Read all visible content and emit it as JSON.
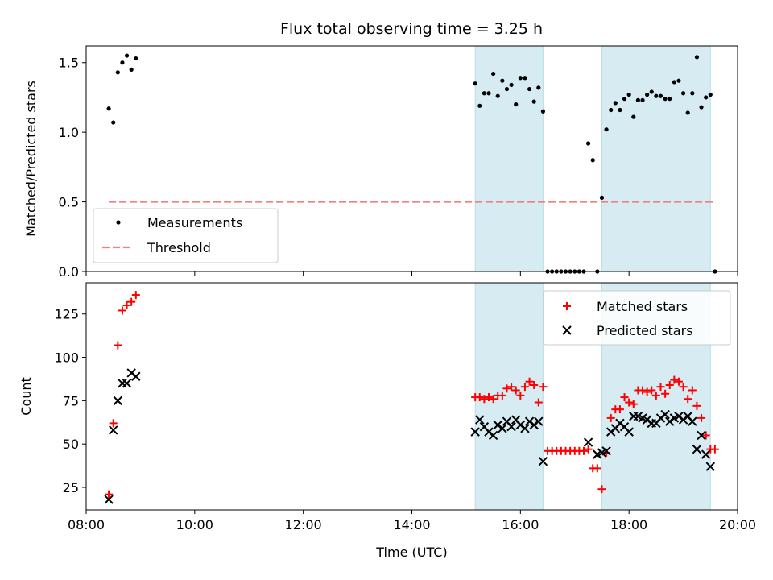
{
  "chart_data": [
    {
      "type": "scatter",
      "title": "Flux total observing time = 3.25 h",
      "xlabel": "",
      "ylabel": "Matched/Predicted stars",
      "xlim": [
        "08:00",
        "20:00"
      ],
      "ylim": [
        0,
        1.62
      ],
      "yticks": [
        "0.0",
        "0.5",
        "1.0",
        "1.5"
      ],
      "legend_position": "lower-left",
      "colors": {
        "measurements": "#000000",
        "threshold": "#f08080",
        "highlight": "#add8e6"
      },
      "highlight_spans": [
        [
          "15:10",
          "16:25"
        ],
        [
          "17:30",
          "19:30"
        ]
      ],
      "threshold": {
        "name": "Threshold",
        "y": 0.5,
        "x_start": "08:25",
        "x_end": "19:35"
      },
      "series": [
        {
          "name": "Measurements",
          "points": [
            [
              "08:25",
              1.17
            ],
            [
              "08:30",
              1.07
            ],
            [
              "08:35",
              1.43
            ],
            [
              "08:40",
              1.5
            ],
            [
              "08:45",
              1.55
            ],
            [
              "08:50",
              1.45
            ],
            [
              "08:55",
              1.53
            ],
            [
              "15:10",
              1.35
            ],
            [
              "15:15",
              1.19
            ],
            [
              "15:20",
              1.28
            ],
            [
              "15:25",
              1.28
            ],
            [
              "15:30",
              1.42
            ],
            [
              "15:35",
              1.26
            ],
            [
              "15:40",
              1.37
            ],
            [
              "15:45",
              1.31
            ],
            [
              "15:50",
              1.34
            ],
            [
              "15:55",
              1.2
            ],
            [
              "16:00",
              1.39
            ],
            [
              "16:05",
              1.39
            ],
            [
              "16:10",
              1.31
            ],
            [
              "16:15",
              1.22
            ],
            [
              "16:20",
              1.32
            ],
            [
              "16:25",
              1.15
            ],
            [
              "16:30",
              0.0
            ],
            [
              "16:35",
              0.0
            ],
            [
              "16:40",
              0.0
            ],
            [
              "16:45",
              0.0
            ],
            [
              "16:50",
              0.0
            ],
            [
              "16:55",
              0.0
            ],
            [
              "17:00",
              0.0
            ],
            [
              "17:05",
              0.0
            ],
            [
              "17:10",
              0.0
            ],
            [
              "17:15",
              0.92
            ],
            [
              "17:20",
              0.8
            ],
            [
              "17:25",
              0.0
            ],
            [
              "17:30",
              0.53
            ],
            [
              "17:35",
              1.02
            ],
            [
              "17:40",
              1.16
            ],
            [
              "17:45",
              1.21
            ],
            [
              "17:50",
              1.16
            ],
            [
              "17:55",
              1.24
            ],
            [
              "18:00",
              1.27
            ],
            [
              "18:05",
              1.11
            ],
            [
              "18:10",
              1.23
            ],
            [
              "18:15",
              1.23
            ],
            [
              "18:20",
              1.27
            ],
            [
              "18:25",
              1.29
            ],
            [
              "18:30",
              1.26
            ],
            [
              "18:35",
              1.26
            ],
            [
              "18:40",
              1.24
            ],
            [
              "18:45",
              1.24
            ],
            [
              "18:50",
              1.36
            ],
            [
              "18:55",
              1.37
            ],
            [
              "19:00",
              1.28
            ],
            [
              "19:05",
              1.14
            ],
            [
              "19:10",
              1.28
            ],
            [
              "19:15",
              1.54
            ],
            [
              "19:20",
              1.18
            ],
            [
              "19:25",
              1.25
            ],
            [
              "19:30",
              1.27
            ],
            [
              "19:35",
              0.0
            ]
          ]
        }
      ]
    },
    {
      "type": "scatter",
      "title": "",
      "xlabel": "Time (UTC)",
      "ylabel": "Count",
      "xlim": [
        "08:00",
        "20:00"
      ],
      "ylim": [
        12,
        143
      ],
      "xticks": [
        "08:00",
        "10:00",
        "12:00",
        "14:00",
        "16:00",
        "18:00",
        "20:00"
      ],
      "yticks": [
        "25",
        "50",
        "75",
        "100",
        "125"
      ],
      "legend_position": "upper-right",
      "colors": {
        "matched": "#ff0000",
        "predicted": "#000000",
        "highlight": "#add8e6"
      },
      "highlight_spans": [
        [
          "15:10",
          "16:25"
        ],
        [
          "17:30",
          "19:30"
        ]
      ],
      "series": [
        {
          "name": "Matched stars",
          "marker": "plus",
          "points": [
            [
              "08:25",
              21
            ],
            [
              "08:30",
              62
            ],
            [
              "08:35",
              107
            ],
            [
              "08:40",
              127
            ],
            [
              "08:45",
              130
            ],
            [
              "08:50",
              132
            ],
            [
              "08:55",
              136
            ],
            [
              "15:10",
              77
            ],
            [
              "15:15",
              77
            ],
            [
              "15:20",
              76
            ],
            [
              "15:25",
              77
            ],
            [
              "15:30",
              76
            ],
            [
              "15:35",
              78
            ],
            [
              "15:40",
              78
            ],
            [
              "15:45",
              82
            ],
            [
              "15:50",
              83
            ],
            [
              "15:55",
              81
            ],
            [
              "16:00",
              78
            ],
            [
              "16:05",
              83
            ],
            [
              "16:10",
              86
            ],
            [
              "16:15",
              84
            ],
            [
              "16:20",
              74
            ],
            [
              "16:25",
              83
            ],
            [
              "16:30",
              46
            ],
            [
              "16:35",
              46
            ],
            [
              "16:40",
              46
            ],
            [
              "16:45",
              46
            ],
            [
              "16:50",
              46
            ],
            [
              "16:55",
              46
            ],
            [
              "17:00",
              46
            ],
            [
              "17:05",
              46
            ],
            [
              "17:10",
              46
            ],
            [
              "17:15",
              47
            ],
            [
              "17:20",
              36
            ],
            [
              "17:25",
              36
            ],
            [
              "17:30",
              24
            ],
            [
              "17:35",
              45
            ],
            [
              "17:40",
              65
            ],
            [
              "17:45",
              70
            ],
            [
              "17:50",
              70
            ],
            [
              "17:55",
              77
            ],
            [
              "18:00",
              74
            ],
            [
              "18:05",
              73
            ],
            [
              "18:10",
              81
            ],
            [
              "18:15",
              81
            ],
            [
              "18:20",
              80
            ],
            [
              "18:25",
              81
            ],
            [
              "18:30",
              78
            ],
            [
              "18:35",
              83
            ],
            [
              "18:40",
              79
            ],
            [
              "18:45",
              84
            ],
            [
              "18:50",
              87
            ],
            [
              "18:55",
              86
            ],
            [
              "19:00",
              83
            ],
            [
              "19:05",
              76
            ],
            [
              "19:10",
              81
            ],
            [
              "19:15",
              72
            ],
            [
              "19:20",
              65
            ],
            [
              "19:25",
              55
            ],
            [
              "19:30",
              47
            ],
            [
              "19:35",
              47
            ]
          ]
        },
        {
          "name": "Predicted stars",
          "marker": "x",
          "points": [
            [
              "08:25",
              18
            ],
            [
              "08:30",
              58
            ],
            [
              "08:35",
              75
            ],
            [
              "08:40",
              85
            ],
            [
              "08:45",
              85
            ],
            [
              "08:50",
              91
            ],
            [
              "08:55",
              89
            ],
            [
              "15:10",
              57
            ],
            [
              "15:15",
              64
            ],
            [
              "15:20",
              60
            ],
            [
              "15:25",
              57
            ],
            [
              "15:30",
              55
            ],
            [
              "15:35",
              61
            ],
            [
              "15:40",
              59
            ],
            [
              "15:45",
              63
            ],
            [
              "15:50",
              60
            ],
            [
              "15:55",
              64
            ],
            [
              "16:00",
              61
            ],
            [
              "16:05",
              59
            ],
            [
              "16:10",
              63
            ],
            [
              "16:15",
              61
            ],
            [
              "16:20",
              63
            ],
            [
              "16:25",
              40
            ],
            [
              "17:15",
              51
            ],
            [
              "17:25",
              44
            ],
            [
              "17:30",
              45
            ],
            [
              "17:35",
              46
            ],
            [
              "17:40",
              57
            ],
            [
              "17:45",
              59
            ],
            [
              "17:50",
              62
            ],
            [
              "17:55",
              60
            ],
            [
              "18:00",
              57
            ],
            [
              "18:05",
              66
            ],
            [
              "18:10",
              66
            ],
            [
              "18:15",
              65
            ],
            [
              "18:20",
              64
            ],
            [
              "18:25",
              62
            ],
            [
              "18:30",
              62
            ],
            [
              "18:35",
              65
            ],
            [
              "18:40",
              67
            ],
            [
              "18:45",
              63
            ],
            [
              "18:50",
              65
            ],
            [
              "18:55",
              66
            ],
            [
              "19:00",
              64
            ],
            [
              "19:05",
              66
            ],
            [
              "19:10",
              63
            ],
            [
              "19:15",
              47
            ],
            [
              "19:20",
              55
            ],
            [
              "19:25",
              44
            ],
            [
              "19:30",
              37
            ]
          ]
        }
      ]
    }
  ]
}
